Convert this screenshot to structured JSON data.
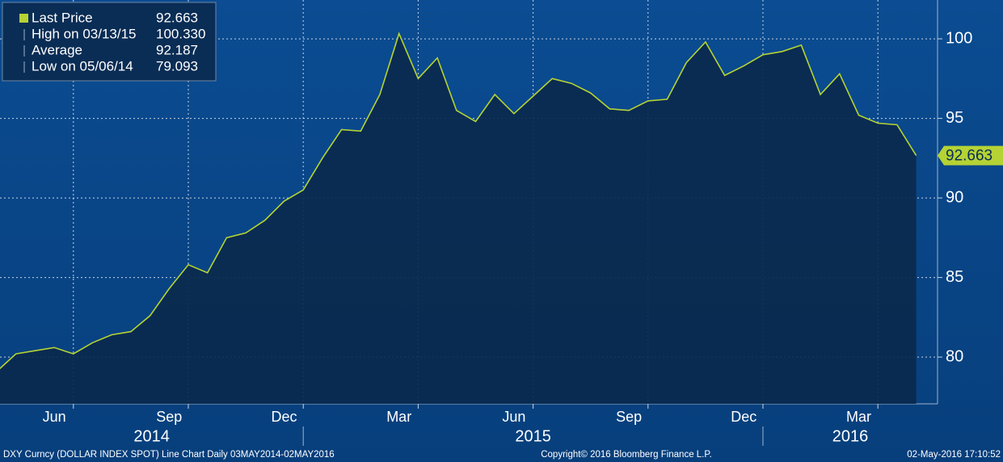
{
  "chart_data": {
    "type": "line",
    "x": [
      "2014-05",
      "2014-05",
      "2014-06",
      "2014-06",
      "2014-07",
      "2014-07",
      "2014-08",
      "2014-08",
      "2014-09",
      "2014-09",
      "2014-10",
      "2014-10",
      "2014-11",
      "2014-11",
      "2014-12",
      "2014-12",
      "2015-01",
      "2015-01",
      "2015-02",
      "2015-02",
      "2015-03",
      "2015-03",
      "2015-04",
      "2015-04",
      "2015-05",
      "2015-05",
      "2015-06",
      "2015-06",
      "2015-07",
      "2015-07",
      "2015-08",
      "2015-08",
      "2015-09",
      "2015-09",
      "2015-10",
      "2015-10",
      "2015-11",
      "2015-11",
      "2015-12",
      "2015-12",
      "2016-01",
      "2016-01",
      "2016-02",
      "2016-02",
      "2016-03",
      "2016-03",
      "2016-04",
      "2016-04",
      "2016-05"
    ],
    "series": [
      {
        "name": "Last Price",
        "color": "#b5d334",
        "values": [
          79.1,
          80.2,
          80.4,
          80.6,
          80.2,
          80.9,
          81.4,
          81.6,
          82.6,
          84.3,
          85.8,
          85.3,
          87.5,
          87.8,
          88.6,
          89.8,
          90.5,
          92.5,
          94.3,
          94.2,
          96.5,
          100.33,
          97.5,
          98.8,
          95.5,
          94.8,
          96.5,
          95.3,
          96.4,
          97.5,
          97.2,
          96.6,
          95.6,
          95.5,
          96.1,
          96.2,
          98.5,
          99.8,
          97.7,
          98.3,
          99.0,
          99.2,
          99.6,
          96.5,
          97.8,
          95.2,
          94.7,
          94.6,
          92.663
        ]
      }
    ],
    "legend_stats": [
      {
        "label": "Last Price",
        "value": "92.663"
      },
      {
        "label": "High on 03/13/15",
        "value": "100.330"
      },
      {
        "label": "Average",
        "value": "92.187"
      },
      {
        "label": "Low on 05/06/14",
        "value": "79.093"
      }
    ],
    "ylim": [
      77.06,
      102.44
    ],
    "yticks": [
      80,
      85,
      90,
      95,
      100
    ],
    "grid": true,
    "xticks": [
      {
        "value": "2014-06",
        "label": "Jun"
      },
      {
        "value": "2014-09",
        "label": "Sep"
      },
      {
        "value": "2014-12",
        "label": "Dec"
      },
      {
        "value": "2015-03",
        "label": "Mar"
      },
      {
        "value": "2015-06",
        "label": "Jun"
      },
      {
        "value": "2015-09",
        "label": "Sep"
      },
      {
        "value": "2015-12",
        "label": "Dec"
      },
      {
        "value": "2016-03",
        "label": "Mar"
      }
    ],
    "year_labels": [
      {
        "value": "2014",
        "label": "2014"
      },
      {
        "value": "2015",
        "label": "2015"
      },
      {
        "value": "2016",
        "label": "2016"
      }
    ],
    "footer_left": "DXY Curncy (DOLLAR INDEX SPOT) Line Chart  Daily 03MAY2014-02MAY2016",
    "footer_center": "Copyright© 2016 Bloomberg Finance L.P.",
    "footer_right": "02-May-2016 17:10:52"
  }
}
